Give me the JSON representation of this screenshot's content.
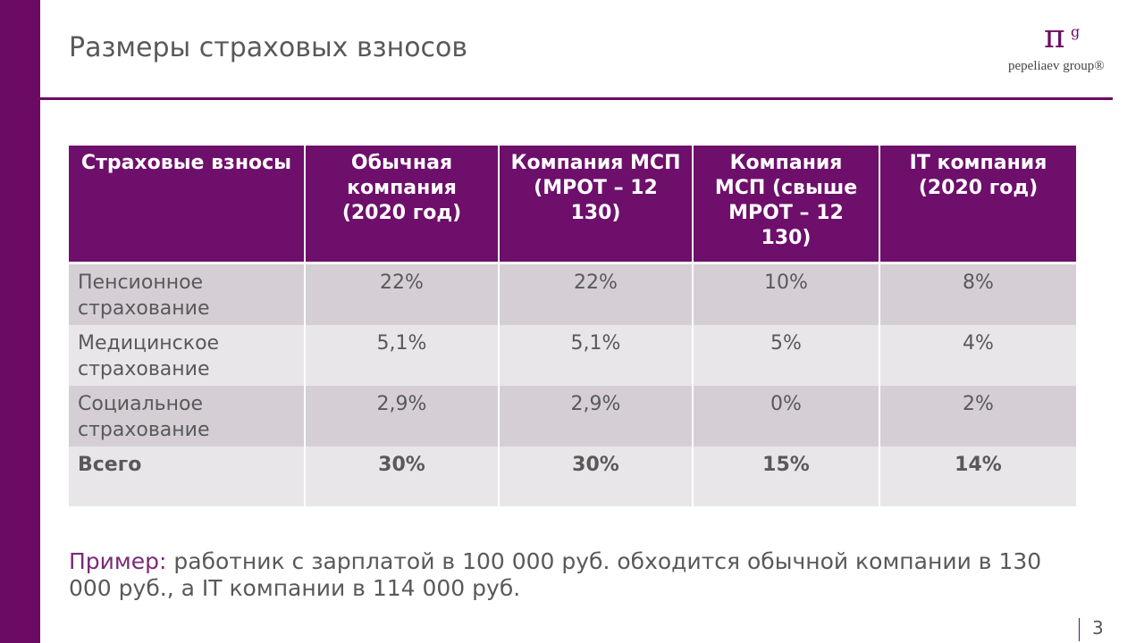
{
  "header": {
    "title": "Размеры страховых взносов",
    "logo": {
      "symbol": "π",
      "superscript": "g",
      "name": "pepeliaev group®"
    }
  },
  "table": {
    "columns": [
      "Страховые взносы",
      "Обычная компания (2020 год)",
      "Компания МСП (МРОТ – 12 130)",
      "Компания МСП (свыше МРОТ – 12 130)",
      "IT компания (2020 год)"
    ],
    "rows": [
      [
        "Пенсионное страхование",
        "22%",
        "22%",
        "10%",
        "8%"
      ],
      [
        "Медицинское страхование",
        "5,1%",
        "5,1%",
        "5%",
        "4%"
      ],
      [
        "Социальное страхование",
        "2,9%",
        "2,9%",
        "0%",
        "2%"
      ],
      [
        "Всего",
        "30%",
        "30%",
        "15%",
        "14%"
      ]
    ]
  },
  "example": {
    "label": "Пример:",
    "text": "работник с зарплатой в 100 000 руб. обходится обычной компании в 130 000 руб., а IT компании в 114 000 руб."
  },
  "page_number": "3"
}
